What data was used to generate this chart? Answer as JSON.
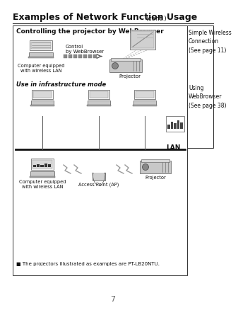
{
  "page_number": "7",
  "title_bold": "Examples of Network Function Usage",
  "title_cont": "(cont.)",
  "bg_color": "#ffffff",
  "box1_title": "Controlling the projector by WebBrowser",
  "box1_label_control": "Control\nby WebBrowser",
  "box1_label_computer": "Computer equipped\nwith wireless LAN",
  "box1_label_projector": "Projector",
  "box2_title": "Use in infrastructure mode",
  "box2_label_lan": "LAN",
  "box2_label_computer": "Computer equipped\nwith wireless LAN",
  "box2_label_ap": "Access Point (AP)",
  "box2_label_projector": "Projector",
  "footnote": "■ The projectors illustrated as examples are PT-LB20NTU.",
  "sidebar_line1": "Simple Wireless\nConnection\n(See page 11)",
  "sidebar_line2": "Using\nWebBrowser\n(See page 38)"
}
